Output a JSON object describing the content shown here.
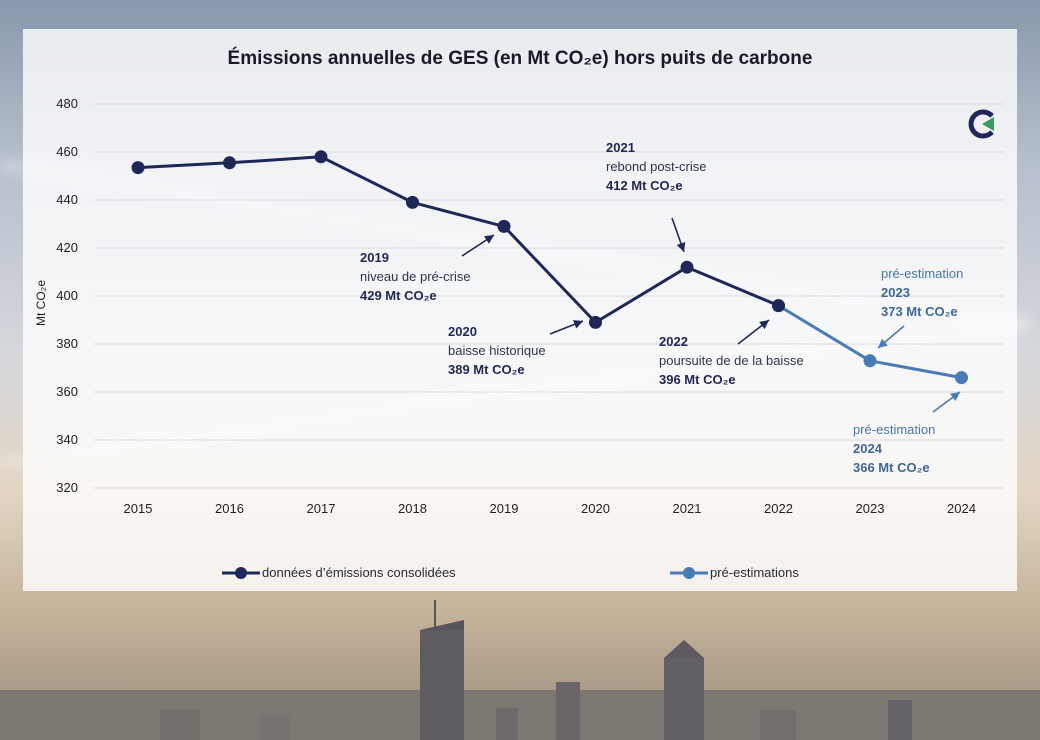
{
  "chart_data": {
    "type": "line",
    "title": "Émissions annuelles de GES (en Mt CO₂e) hors puits de carbone",
    "ylabel": "Mt CO₂e",
    "xlabel": "",
    "ylim": [
      320,
      480
    ],
    "y_ticks": [
      320,
      340,
      360,
      380,
      400,
      420,
      440,
      460,
      480
    ],
    "categories": [
      "2015",
      "2016",
      "2017",
      "2018",
      "2019",
      "2020",
      "2021",
      "2022",
      "2023",
      "2024"
    ],
    "series": [
      {
        "name": "données d’émissions consolidées",
        "color": "#1e2858",
        "x": [
          "2015",
          "2016",
          "2017",
          "2018",
          "2019",
          "2020",
          "2021",
          "2022"
        ],
        "values": [
          453.5,
          455.5,
          458,
          439,
          429,
          389,
          412,
          396
        ]
      },
      {
        "name": "pré-estimations",
        "color": "#4a7ab5",
        "x": [
          "2022",
          "2023",
          "2024"
        ],
        "values": [
          396,
          373,
          366
        ]
      }
    ],
    "annotations": [
      {
        "year": "2019",
        "text": "niveau de pré-crise",
        "value": "429 Mt CO₂e"
      },
      {
        "year": "2020",
        "text": "baisse historique",
        "value": "389 Mt CO₂e"
      },
      {
        "year": "2021",
        "text": "rebond post-crise",
        "value": "412 Mt CO₂e"
      },
      {
        "year": "2022",
        "text": "poursuite de de la baisse",
        "value": "396 Mt CO₂e"
      },
      {
        "year": "2023",
        "text": "pré-estimation",
        "value": "373 Mt CO₂e"
      },
      {
        "year": "2024",
        "text": "pré-estimation",
        "value": "366 Mt CO₂e"
      }
    ],
    "grid": true,
    "legend_position": "bottom"
  },
  "colors": {
    "consolidated": "#1e2858",
    "preestimate": "#4a7ab5",
    "grid": "#d7d9de"
  }
}
